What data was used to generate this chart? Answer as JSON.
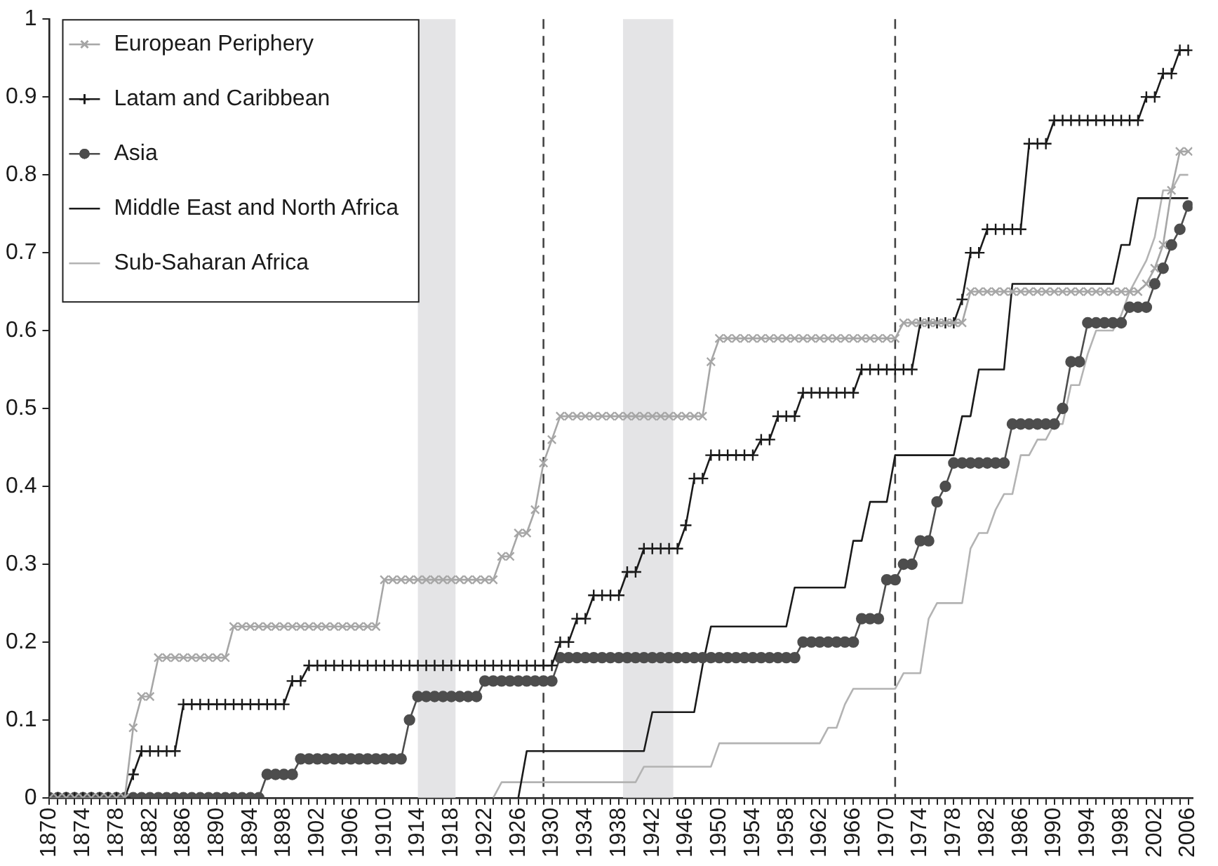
{
  "chart_data": {
    "type": "line",
    "legend": "top left",
    "grid": false,
    "x": [
      1870,
      1871,
      1872,
      1873,
      1874,
      1875,
      1876,
      1877,
      1878,
      1879,
      1880,
      1881,
      1882,
      1883,
      1884,
      1885,
      1886,
      1887,
      1888,
      1889,
      1890,
      1891,
      1892,
      1893,
      1894,
      1895,
      1896,
      1897,
      1898,
      1899,
      1900,
      1901,
      1902,
      1903,
      1904,
      1905,
      1906,
      1907,
      1908,
      1909,
      1910,
      1911,
      1912,
      1913,
      1914,
      1915,
      1916,
      1917,
      1918,
      1919,
      1920,
      1921,
      1922,
      1923,
      1924,
      1925,
      1926,
      1927,
      1928,
      1929,
      1930,
      1931,
      1932,
      1933,
      1934,
      1935,
      1936,
      1937,
      1938,
      1939,
      1940,
      1941,
      1942,
      1943,
      1944,
      1945,
      1946,
      1947,
      1948,
      1949,
      1950,
      1951,
      1952,
      1953,
      1954,
      1955,
      1956,
      1957,
      1958,
      1959,
      1960,
      1961,
      1962,
      1963,
      1964,
      1965,
      1966,
      1967,
      1968,
      1969,
      1970,
      1971,
      1972,
      1973,
      1974,
      1975,
      1976,
      1977,
      1978,
      1979,
      1980,
      1981,
      1982,
      1983,
      1984,
      1985,
      1986,
      1987,
      1988,
      1989,
      1990,
      1991,
      1992,
      1993,
      1994,
      1995,
      1996,
      1997,
      1998,
      1999,
      2000,
      2001,
      2002,
      2003,
      2004,
      2005,
      2006
    ],
    "xlim": [
      1870,
      2006.5
    ],
    "xticks": [
      1870,
      {
        "value": 1871,
        "label": null
      },
      {
        "value": 1872,
        "label": null
      },
      {
        "value": 1873,
        "label": null
      },
      1874,
      {
        "value": 1875,
        "label": null
      },
      {
        "value": 1876,
        "label": null
      },
      {
        "value": 1877,
        "label": null
      },
      1878,
      {
        "value": 1879,
        "label": null
      },
      {
        "value": 1880,
        "label": null
      },
      {
        "value": 1881,
        "label": null
      },
      1882,
      {
        "value": 1883,
        "label": null
      },
      {
        "value": 1884,
        "label": null
      },
      {
        "value": 1885,
        "label": null
      },
      1886,
      {
        "value": 1887,
        "label": null
      },
      {
        "value": 1888,
        "label": null
      },
      {
        "value": 1889,
        "label": null
      },
      1890,
      {
        "value": 1891,
        "label": null
      },
      {
        "value": 1892,
        "label": null
      },
      {
        "value": 1893,
        "label": null
      },
      1894,
      {
        "value": 1895,
        "label": null
      },
      {
        "value": 1896,
        "label": null
      },
      {
        "value": 1897,
        "label": null
      },
      1898,
      {
        "value": 1899,
        "label": null
      },
      {
        "value": 1900,
        "label": null
      },
      {
        "value": 1901,
        "label": null
      },
      1902,
      {
        "value": 1903,
        "label": null
      },
      {
        "value": 1904,
        "label": null
      },
      {
        "value": 1905,
        "label": null
      },
      1906,
      {
        "value": 1907,
        "label": null
      },
      {
        "value": 1908,
        "label": null
      },
      {
        "value": 1909,
        "label": null
      },
      1910,
      {
        "value": 1911,
        "label": null
      },
      {
        "value": 1912,
        "label": null
      },
      {
        "value": 1913,
        "label": null
      },
      1914,
      {
        "value": 1915,
        "label": null
      },
      {
        "value": 1916,
        "label": null
      },
      {
        "value": 1917,
        "label": null
      },
      1918,
      {
        "value": 1919,
        "label": null
      },
      {
        "value": 1920,
        "label": null
      },
      {
        "value": 1921,
        "label": null
      },
      1922,
      {
        "value": 1923,
        "label": null
      },
      {
        "value": 1924,
        "label": null
      },
      {
        "value": 1925,
        "label": null
      },
      1926,
      {
        "value": 1927,
        "label": null
      },
      {
        "value": 1928,
        "label": null
      },
      {
        "value": 1929,
        "label": null
      },
      1930,
      {
        "value": 1931,
        "label": null
      },
      {
        "value": 1932,
        "label": null
      },
      {
        "value": 1933,
        "label": null
      },
      1934,
      {
        "value": 1935,
        "label": null
      },
      {
        "value": 1936,
        "label": null
      },
      {
        "value": 1937,
        "label": null
      },
      1938,
      {
        "value": 1939,
        "label": null
      },
      {
        "value": 1940,
        "label": null
      },
      {
        "value": 1941,
        "label": null
      },
      1942,
      {
        "value": 1943,
        "label": null
      },
      {
        "value": 1944,
        "label": null
      },
      {
        "value": 1945,
        "label": null
      },
      1946,
      {
        "value": 1947,
        "label": null
      },
      {
        "value": 1948,
        "label": null
      },
      {
        "value": 1949,
        "label": null
      },
      1950,
      {
        "value": 1951,
        "label": null
      },
      {
        "value": 1952,
        "label": null
      },
      {
        "value": 1953,
        "label": null
      },
      1954,
      {
        "value": 1955,
        "label": null
      },
      {
        "value": 1956,
        "label": null
      },
      {
        "value": 1957,
        "label": null
      },
      1958,
      {
        "value": 1959,
        "label": null
      },
      {
        "value": 1960,
        "label": null
      },
      {
        "value": 1961,
        "label": null
      },
      1962,
      {
        "value": 1963,
        "label": null
      },
      {
        "value": 1964,
        "label": null
      },
      {
        "value": 1965,
        "label": null
      },
      1966,
      {
        "value": 1967,
        "label": null
      },
      {
        "value": 1968,
        "label": null
      },
      {
        "value": 1969,
        "label": null
      },
      1970,
      {
        "value": 1971,
        "label": null
      },
      {
        "value": 1972,
        "label": null
      },
      {
        "value": 1973,
        "label": null
      },
      1974,
      {
        "value": 1975,
        "label": null
      },
      {
        "value": 1976,
        "label": null
      },
      {
        "value": 1977,
        "label": null
      },
      1978,
      {
        "value": 1979,
        "label": null
      },
      {
        "value": 1980,
        "label": null
      },
      {
        "value": 1981,
        "label": null
      },
      1982,
      {
        "value": 1983,
        "label": null
      },
      {
        "value": 1984,
        "label": null
      },
      {
        "value": 1985,
        "label": null
      },
      1986,
      {
        "value": 1987,
        "label": null
      },
      {
        "value": 1988,
        "label": null
      },
      {
        "value": 1989,
        "label": null
      },
      1990,
      {
        "value": 1991,
        "label": null
      },
      {
        "value": 1992,
        "label": null
      },
      {
        "value": 1993,
        "label": null
      },
      1994,
      {
        "value": 1995,
        "label": null
      },
      {
        "value": 1996,
        "label": null
      },
      {
        "value": 1997,
        "label": null
      },
      1998,
      {
        "value": 1999,
        "label": null
      },
      {
        "value": 2000,
        "label": null
      },
      {
        "value": 2001,
        "label": null
      },
      2002,
      {
        "value": 2003,
        "label": null
      },
      {
        "value": 2004,
        "label": null
      },
      {
        "value": 2005,
        "label": null
      },
      2006
    ],
    "ylim": [
      0,
      1
    ],
    "yticks": [
      0,
      0.1,
      0.2,
      0.3,
      0.4,
      0.5,
      0.6,
      0.7,
      0.8,
      0.9,
      1
    ],
    "bands": [
      {
        "axis": "x",
        "from": 1914,
        "to": 1918.5,
        "color": "#e4e4e6"
      },
      {
        "axis": "x",
        "from": 1938.5,
        "to": 1944.5,
        "color": "#e4e4e6"
      }
    ],
    "ref_lines": [
      {
        "axis": "x",
        "value": 1929,
        "color": "#444444",
        "line_style": "dashed"
      },
      {
        "axis": "x",
        "value": 1971,
        "color": "#444444",
        "line_style": "dashed"
      }
    ],
    "series": [
      {
        "name": "European Periphery",
        "color": "#a6a6a6",
        "marker": "cross",
        "values": [
          0,
          0,
          0,
          0,
          0,
          0,
          0,
          0,
          0,
          0,
          0.09,
          0.13,
          0.13,
          0.18,
          0.18,
          0.18,
          0.18,
          0.18,
          0.18,
          0.18,
          0.18,
          0.18,
          0.22,
          0.22,
          0.22,
          0.22,
          0.22,
          0.22,
          0.22,
          0.22,
          0.22,
          0.22,
          0.22,
          0.22,
          0.22,
          0.22,
          0.22,
          0.22,
          0.22,
          0.22,
          0.28,
          0.28,
          0.28,
          0.28,
          0.28,
          0.28,
          0.28,
          0.28,
          0.28,
          0.28,
          0.28,
          0.28,
          0.28,
          0.28,
          0.31,
          0.31,
          0.34,
          0.34,
          0.37,
          0.43,
          0.46,
          0.49,
          0.49,
          0.49,
          0.49,
          0.49,
          0.49,
          0.49,
          0.49,
          0.49,
          0.49,
          0.49,
          0.49,
          0.49,
          0.49,
          0.49,
          0.49,
          0.49,
          0.49,
          0.56,
          0.59,
          0.59,
          0.59,
          0.59,
          0.59,
          0.59,
          0.59,
          0.59,
          0.59,
          0.59,
          0.59,
          0.59,
          0.59,
          0.59,
          0.59,
          0.59,
          0.59,
          0.59,
          0.59,
          0.59,
          0.59,
          0.59,
          0.61,
          0.61,
          0.61,
          0.61,
          0.61,
          0.61,
          0.61,
          0.61,
          0.65,
          0.65,
          0.65,
          0.65,
          0.65,
          0.65,
          0.65,
          0.65,
          0.65,
          0.65,
          0.65,
          0.65,
          0.65,
          0.65,
          0.65,
          0.65,
          0.65,
          0.65,
          0.65,
          0.65,
          0.65,
          0.66,
          0.68,
          0.71,
          0.78,
          0.83,
          0.83
        ]
      },
      {
        "name": "Latam and Caribbean",
        "color": "#1a1a1a",
        "marker": "plus",
        "values": [
          0,
          0,
          0,
          0,
          0,
          0,
          0,
          0,
          0,
          0,
          0.03,
          0.06,
          0.06,
          0.06,
          0.06,
          0.06,
          0.12,
          0.12,
          0.12,
          0.12,
          0.12,
          0.12,
          0.12,
          0.12,
          0.12,
          0.12,
          0.12,
          0.12,
          0.12,
          0.15,
          0.15,
          0.17,
          0.17,
          0.17,
          0.17,
          0.17,
          0.17,
          0.17,
          0.17,
          0.17,
          0.17,
          0.17,
          0.17,
          0.17,
          0.17,
          0.17,
          0.17,
          0.17,
          0.17,
          0.17,
          0.17,
          0.17,
          0.17,
          0.17,
          0.17,
          0.17,
          0.17,
          0.17,
          0.17,
          0.17,
          0.17,
          0.2,
          0.2,
          0.23,
          0.23,
          0.26,
          0.26,
          0.26,
          0.26,
          0.29,
          0.29,
          0.32,
          0.32,
          0.32,
          0.32,
          0.32,
          0.35,
          0.41,
          0.41,
          0.44,
          0.44,
          0.44,
          0.44,
          0.44,
          0.44,
          0.46,
          0.46,
          0.49,
          0.49,
          0.49,
          0.52,
          0.52,
          0.52,
          0.52,
          0.52,
          0.52,
          0.52,
          0.55,
          0.55,
          0.55,
          0.55,
          0.55,
          0.55,
          0.55,
          0.61,
          0.61,
          0.61,
          0.61,
          0.61,
          0.64,
          0.7,
          0.7,
          0.73,
          0.73,
          0.73,
          0.73,
          0.73,
          0.84,
          0.84,
          0.84,
          0.87,
          0.87,
          0.87,
          0.87,
          0.87,
          0.87,
          0.87,
          0.87,
          0.87,
          0.87,
          0.87,
          0.9,
          0.9,
          0.93,
          0.93,
          0.96,
          0.96
        ]
      },
      {
        "name": "Asia",
        "color": "#4d4d4d",
        "marker": "circle",
        "values": [
          0,
          0,
          0,
          0,
          0,
          0,
          0,
          0,
          0,
          0,
          0,
          0,
          0,
          0,
          0,
          0,
          0,
          0,
          0,
          0,
          0,
          0,
          0,
          0,
          0,
          0,
          0.03,
          0.03,
          0.03,
          0.03,
          0.05,
          0.05,
          0.05,
          0.05,
          0.05,
          0.05,
          0.05,
          0.05,
          0.05,
          0.05,
          0.05,
          0.05,
          0.05,
          0.1,
          0.13,
          0.13,
          0.13,
          0.13,
          0.13,
          0.13,
          0.13,
          0.13,
          0.15,
          0.15,
          0.15,
          0.15,
          0.15,
          0.15,
          0.15,
          0.15,
          0.15,
          0.18,
          0.18,
          0.18,
          0.18,
          0.18,
          0.18,
          0.18,
          0.18,
          0.18,
          0.18,
          0.18,
          0.18,
          0.18,
          0.18,
          0.18,
          0.18,
          0.18,
          0.18,
          0.18,
          0.18,
          0.18,
          0.18,
          0.18,
          0.18,
          0.18,
          0.18,
          0.18,
          0.18,
          0.18,
          0.2,
          0.2,
          0.2,
          0.2,
          0.2,
          0.2,
          0.2,
          0.23,
          0.23,
          0.23,
          0.28,
          0.28,
          0.3,
          0.3,
          0.33,
          0.33,
          0.38,
          0.4,
          0.43,
          0.43,
          0.43,
          0.43,
          0.43,
          0.43,
          0.43,
          0.48,
          0.48,
          0.48,
          0.48,
          0.48,
          0.48,
          0.5,
          0.56,
          0.56,
          0.61,
          0.61,
          0.61,
          0.61,
          0.61,
          0.63,
          0.63,
          0.63,
          0.66,
          0.68,
          0.71,
          0.73,
          0.76
        ]
      },
      {
        "name": "Middle East and North Africa",
        "color": "#1a1a1a",
        "marker": "none",
        "values": [
          null,
          null,
          null,
          null,
          null,
          null,
          null,
          null,
          null,
          null,
          null,
          null,
          null,
          null,
          null,
          null,
          null,
          null,
          null,
          null,
          null,
          null,
          null,
          null,
          null,
          null,
          null,
          null,
          null,
          null,
          null,
          null,
          null,
          null,
          null,
          null,
          null,
          null,
          null,
          null,
          null,
          null,
          null,
          null,
          null,
          null,
          null,
          null,
          null,
          null,
          null,
          null,
          null,
          null,
          null,
          null,
          0,
          0.06,
          0.06,
          0.06,
          0.06,
          0.06,
          0.06,
          0.06,
          0.06,
          0.06,
          0.06,
          0.06,
          0.06,
          0.06,
          0.06,
          0.06,
          0.11,
          0.11,
          0.11,
          0.11,
          0.11,
          0.11,
          0.17,
          0.22,
          0.22,
          0.22,
          0.22,
          0.22,
          0.22,
          0.22,
          0.22,
          0.22,
          0.22,
          0.27,
          0.27,
          0.27,
          0.27,
          0.27,
          0.27,
          0.27,
          0.33,
          0.33,
          0.38,
          0.38,
          0.38,
          0.44,
          0.44,
          0.44,
          0.44,
          0.44,
          0.44,
          0.44,
          0.44,
          0.49,
          0.49,
          0.55,
          0.55,
          0.55,
          0.55,
          0.66,
          0.66,
          0.66,
          0.66,
          0.66,
          0.66,
          0.66,
          0.66,
          0.66,
          0.66,
          0.66,
          0.66,
          0.66,
          0.71,
          0.71,
          0.77,
          0.77,
          0.77,
          0.77,
          0.77,
          0.77,
          0.77
        ]
      },
      {
        "name": "Sub-Saharan Africa",
        "color": "#b3b3b3",
        "marker": "none",
        "values": [
          null,
          null,
          null,
          null,
          null,
          null,
          null,
          null,
          null,
          null,
          null,
          null,
          null,
          null,
          null,
          null,
          null,
          null,
          null,
          null,
          null,
          null,
          null,
          null,
          null,
          null,
          null,
          null,
          null,
          null,
          null,
          null,
          null,
          null,
          null,
          null,
          null,
          null,
          null,
          null,
          null,
          null,
          null,
          null,
          null,
          null,
          null,
          null,
          null,
          null,
          null,
          null,
          null,
          0,
          0.02,
          0.02,
          0.02,
          0.02,
          0.02,
          0.02,
          0.02,
          0.02,
          0.02,
          0.02,
          0.02,
          0.02,
          0.02,
          0.02,
          0.02,
          0.02,
          0.02,
          0.04,
          0.04,
          0.04,
          0.04,
          0.04,
          0.04,
          0.04,
          0.04,
          0.04,
          0.07,
          0.07,
          0.07,
          0.07,
          0.07,
          0.07,
          0.07,
          0.07,
          0.07,
          0.07,
          0.07,
          0.07,
          0.07,
          0.09,
          0.09,
          0.12,
          0.14,
          0.14,
          0.14,
          0.14,
          0.14,
          0.14,
          0.16,
          0.16,
          0.16,
          0.23,
          0.25,
          0.25,
          0.25,
          0.25,
          0.32,
          0.34,
          0.34,
          0.37,
          0.39,
          0.39,
          0.44,
          0.44,
          0.46,
          0.46,
          0.48,
          0.48,
          0.53,
          0.53,
          0.57,
          0.6,
          0.6,
          0.6,
          0.62,
          0.65,
          0.67,
          0.69,
          0.72,
          0.78,
          0.78,
          0.8,
          0.8
        ]
      }
    ]
  }
}
